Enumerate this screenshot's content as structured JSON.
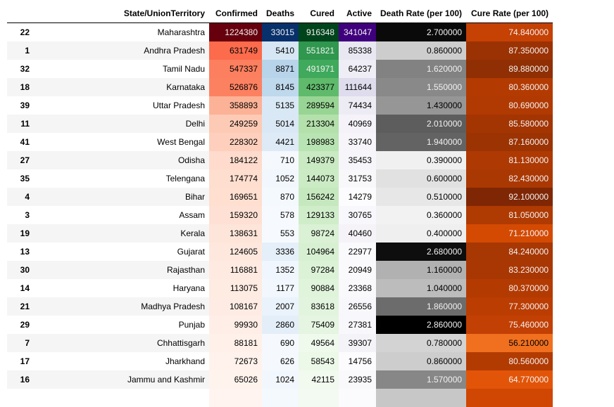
{
  "headers": [
    "",
    "State/UnionTerritory",
    "Confirmed",
    "Deaths",
    "Cured",
    "Active",
    "Death Rate (per 100)",
    "Cure Rate (per 100)"
  ],
  "rows": [
    {
      "index": "22",
      "state": "Maharashtra",
      "confirmed": "1224380",
      "deaths": "33015",
      "cured": "916348",
      "active": "341047",
      "death_rate": "2.700000",
      "cure_rate": "74.840000",
      "colors": {
        "confirmed": "#67000d",
        "deaths": "#08306b",
        "cured": "#00441b",
        "active": "#3f007d",
        "death_rate": "#0a0a0a",
        "cure_rate": "#c54104"
      }
    },
    {
      "index": "1",
      "state": "Andhra Pradesh",
      "confirmed": "631749",
      "deaths": "5410",
      "cured": "551821",
      "active": "85338",
      "death_rate": "0.860000",
      "cure_rate": "87.350000",
      "colors": {
        "confirmed": "#fb6b4c",
        "deaths": "#d6e6f4",
        "cured": "#2f974e",
        "active": "#e9e7f2",
        "death_rate": "#cdcdcd",
        "cure_rate": "#9b3203"
      }
    },
    {
      "index": "32",
      "state": "Tamil Nadu",
      "confirmed": "547337",
      "deaths": "8871",
      "cured": "491971",
      "active": "64237",
      "death_rate": "1.620000",
      "cure_rate": "89.880000",
      "colors": {
        "confirmed": "#fc7f5f",
        "deaths": "#b7d4ea",
        "cured": "#3fa95c",
        "active": "#efedf5",
        "death_rate": "#828282",
        "cure_rate": "#8f2f03"
      }
    },
    {
      "index": "18",
      "state": "Karnataka",
      "confirmed": "526876",
      "deaths": "8145",
      "cured": "423377",
      "active": "111644",
      "death_rate": "1.550000",
      "cure_rate": "80.360000",
      "colors": {
        "confirmed": "#fc8161",
        "deaths": "#bed8ec",
        "cured": "#60ba6c",
        "active": "#dedced",
        "death_rate": "#898989",
        "cure_rate": "#b33b02"
      }
    },
    {
      "index": "39",
      "state": "Uttar Pradesh",
      "confirmed": "358893",
      "deaths": "5135",
      "cured": "289594",
      "active": "74434",
      "death_rate": "1.430000",
      "cure_rate": "80.690000",
      "colors": {
        "confirmed": "#fcb296",
        "deaths": "#d9e8f5",
        "cured": "#98d594",
        "active": "#edecf4",
        "death_rate": "#969696",
        "cure_rate": "#b13a02"
      }
    },
    {
      "index": "11",
      "state": "Delhi",
      "confirmed": "249259",
      "deaths": "5014",
      "cured": "213304",
      "active": "40969",
      "death_rate": "2.010000",
      "cure_rate": "85.580000",
      "colors": {
        "confirmed": "#fdcab5",
        "deaths": "#dae8f6",
        "cured": "#b3e0ab",
        "active": "#f5f3f9",
        "death_rate": "#5d5d5d",
        "cure_rate": "#a33503"
      }
    },
    {
      "index": "41",
      "state": "West Bengal",
      "confirmed": "228302",
      "deaths": "4421",
      "cured": "198983",
      "active": "33740",
      "death_rate": "1.940000",
      "cure_rate": "87.160000",
      "colors": {
        "confirmed": "#fdcfbc",
        "deaths": "#deebf7",
        "cured": "#b8e3b2",
        "active": "#f7f5fa",
        "death_rate": "#636363",
        "cure_rate": "#9c3303"
      }
    },
    {
      "index": "27",
      "state": "Odisha",
      "confirmed": "184122",
      "deaths": "710",
      "cured": "149379",
      "active": "35453",
      "death_rate": "0.390000",
      "cure_rate": "81.130000",
      "colors": {
        "confirmed": "#fedbcc",
        "deaths": "#f5f9fe",
        "cured": "#c9eac2",
        "active": "#f6f5f9",
        "death_rate": "#f0f0f0",
        "cure_rate": "#ae3902"
      }
    },
    {
      "index": "35",
      "state": "Telengana",
      "confirmed": "174774",
      "deaths": "1052",
      "cured": "144073",
      "active": "31753",
      "death_rate": "0.600000",
      "cure_rate": "82.430000",
      "colors": {
        "confirmed": "#fedecf",
        "deaths": "#f2f7fd",
        "cured": "#cbebc5",
        "active": "#f8f7fa",
        "death_rate": "#e1e1e1",
        "cure_rate": "#aa3803"
      }
    },
    {
      "index": "4",
      "state": "Bihar",
      "confirmed": "169651",
      "deaths": "870",
      "cured": "156242",
      "active": "14279",
      "death_rate": "0.510000",
      "cure_rate": "92.100000",
      "colors": {
        "confirmed": "#fedfd0",
        "deaths": "#f4f9fe",
        "cured": "#c6e8bf",
        "active": "#fcfbfd",
        "death_rate": "#e7e7e7",
        "cure_rate": "#7f2704"
      }
    },
    {
      "index": "3",
      "state": "Assam",
      "confirmed": "159320",
      "deaths": "578",
      "cured": "129133",
      "active": "30765",
      "death_rate": "0.360000",
      "cure_rate": "81.050000",
      "colors": {
        "confirmed": "#fee1d4",
        "deaths": "#f6faff",
        "cured": "#d0edca",
        "active": "#f8f7fb",
        "death_rate": "#f2f2f2",
        "cure_rate": "#af3a02"
      }
    },
    {
      "index": "19",
      "state": "Kerala",
      "confirmed": "138631",
      "deaths": "553",
      "cured": "98724",
      "active": "40460",
      "death_rate": "0.400000",
      "cure_rate": "71.210000",
      "colors": {
        "confirmed": "#fee5d9",
        "deaths": "#f6faff",
        "cured": "#dbf1d5",
        "active": "#f5f3f8",
        "death_rate": "#efefef",
        "cure_rate": "#d44a02"
      }
    },
    {
      "index": "13",
      "state": "Gujarat",
      "confirmed": "124605",
      "deaths": "3336",
      "cured": "104964",
      "active": "22977",
      "death_rate": "2.680000",
      "cure_rate": "84.240000",
      "colors": {
        "confirmed": "#fee8de",
        "deaths": "#e5eff9",
        "cured": "#d8f0d2",
        "active": "#faf9fc",
        "death_rate": "#0e0e0e",
        "cure_rate": "#a73703"
      }
    },
    {
      "index": "30",
      "state": "Rajasthan",
      "confirmed": "116881",
      "deaths": "1352",
      "cured": "97284",
      "active": "20949",
      "death_rate": "1.160000",
      "cure_rate": "83.230000",
      "colors": {
        "confirmed": "#feeae1",
        "deaths": "#f0f6fd",
        "cured": "#dcf2d7",
        "active": "#fafafc",
        "death_rate": "#b1b1b1",
        "cure_rate": "#a93703"
      }
    },
    {
      "index": "14",
      "state": "Haryana",
      "confirmed": "113075",
      "deaths": "1177",
      "cured": "90884",
      "active": "23368",
      "death_rate": "1.040000",
      "cure_rate": "80.370000",
      "colors": {
        "confirmed": "#feebe2",
        "deaths": "#f1f7fd",
        "cured": "#e0f3db",
        "active": "#f9f8fb",
        "death_rate": "#bcbcbc",
        "cure_rate": "#b33b02"
      }
    },
    {
      "index": "21",
      "state": "Madhya Pradesh",
      "confirmed": "108167",
      "deaths": "2007",
      "cured": "83618",
      "active": "26556",
      "death_rate": "1.860000",
      "cure_rate": "77.300000",
      "colors": {
        "confirmed": "#feece4",
        "deaths": "#eaf3fb",
        "cured": "#e2f4dd",
        "active": "#f8f7fb",
        "death_rate": "#6c6c6c",
        "cure_rate": "#bb3d02"
      }
    },
    {
      "index": "29",
      "state": "Punjab",
      "confirmed": "99930",
      "deaths": "2860",
      "cured": "75409",
      "active": "27381",
      "death_rate": "2.860000",
      "cure_rate": "75.460000",
      "colors": {
        "confirmed": "#ffeee7",
        "deaths": "#e3eef9",
        "cured": "#e5f5e1",
        "active": "#f8f7fb",
        "death_rate": "#000000",
        "cure_rate": "#c24004"
      }
    },
    {
      "index": "7",
      "state": "Chhattisgarh",
      "confirmed": "88181",
      "deaths": "690",
      "cured": "49564",
      "active": "39307",
      "death_rate": "0.780000",
      "cure_rate": "56.210000",
      "colors": {
        "confirmed": "#fff0e9",
        "deaths": "#f5f9fe",
        "cured": "#eff9ec",
        "active": "#f4f3f8",
        "death_rate": "#d3d3d3",
        "cure_rate": "#f0701f"
      }
    },
    {
      "index": "17",
      "state": "Jharkhand",
      "confirmed": "72673",
      "deaths": "626",
      "cured": "58543",
      "active": "14756",
      "death_rate": "0.860000",
      "cure_rate": "80.560000",
      "colors": {
        "confirmed": "#fff2ec",
        "deaths": "#f5f9fe",
        "cured": "#ecf8e8",
        "active": "#fcfbfd",
        "death_rate": "#cdcdcd",
        "cure_rate": "#b23b02"
      }
    },
    {
      "index": "16",
      "state": "Jammu and Kashmir",
      "confirmed": "65026",
      "deaths": "1024",
      "cured": "42115",
      "active": "23935",
      "death_rate": "1.570000",
      "cure_rate": "64.770000",
      "colors": {
        "confirmed": "#fff3ed",
        "deaths": "#f2f7fd",
        "cured": "#f2faf0",
        "active": "#f9f8fb",
        "death_rate": "#878787",
        "cure_rate": "#e25508"
      }
    },
    {
      "index": "",
      "state": "",
      "confirmed": "",
      "deaths": "",
      "cured": "",
      "active": "",
      "death_rate": "",
      "cure_rate": "",
      "colors": {
        "confirmed": "#fff4ef",
        "deaths": "#f4f9fe",
        "cured": "#f3faf1",
        "active": "#fbfafc",
        "death_rate": "#c7c7c7",
        "cure_rate": "#d04603"
      }
    }
  ]
}
